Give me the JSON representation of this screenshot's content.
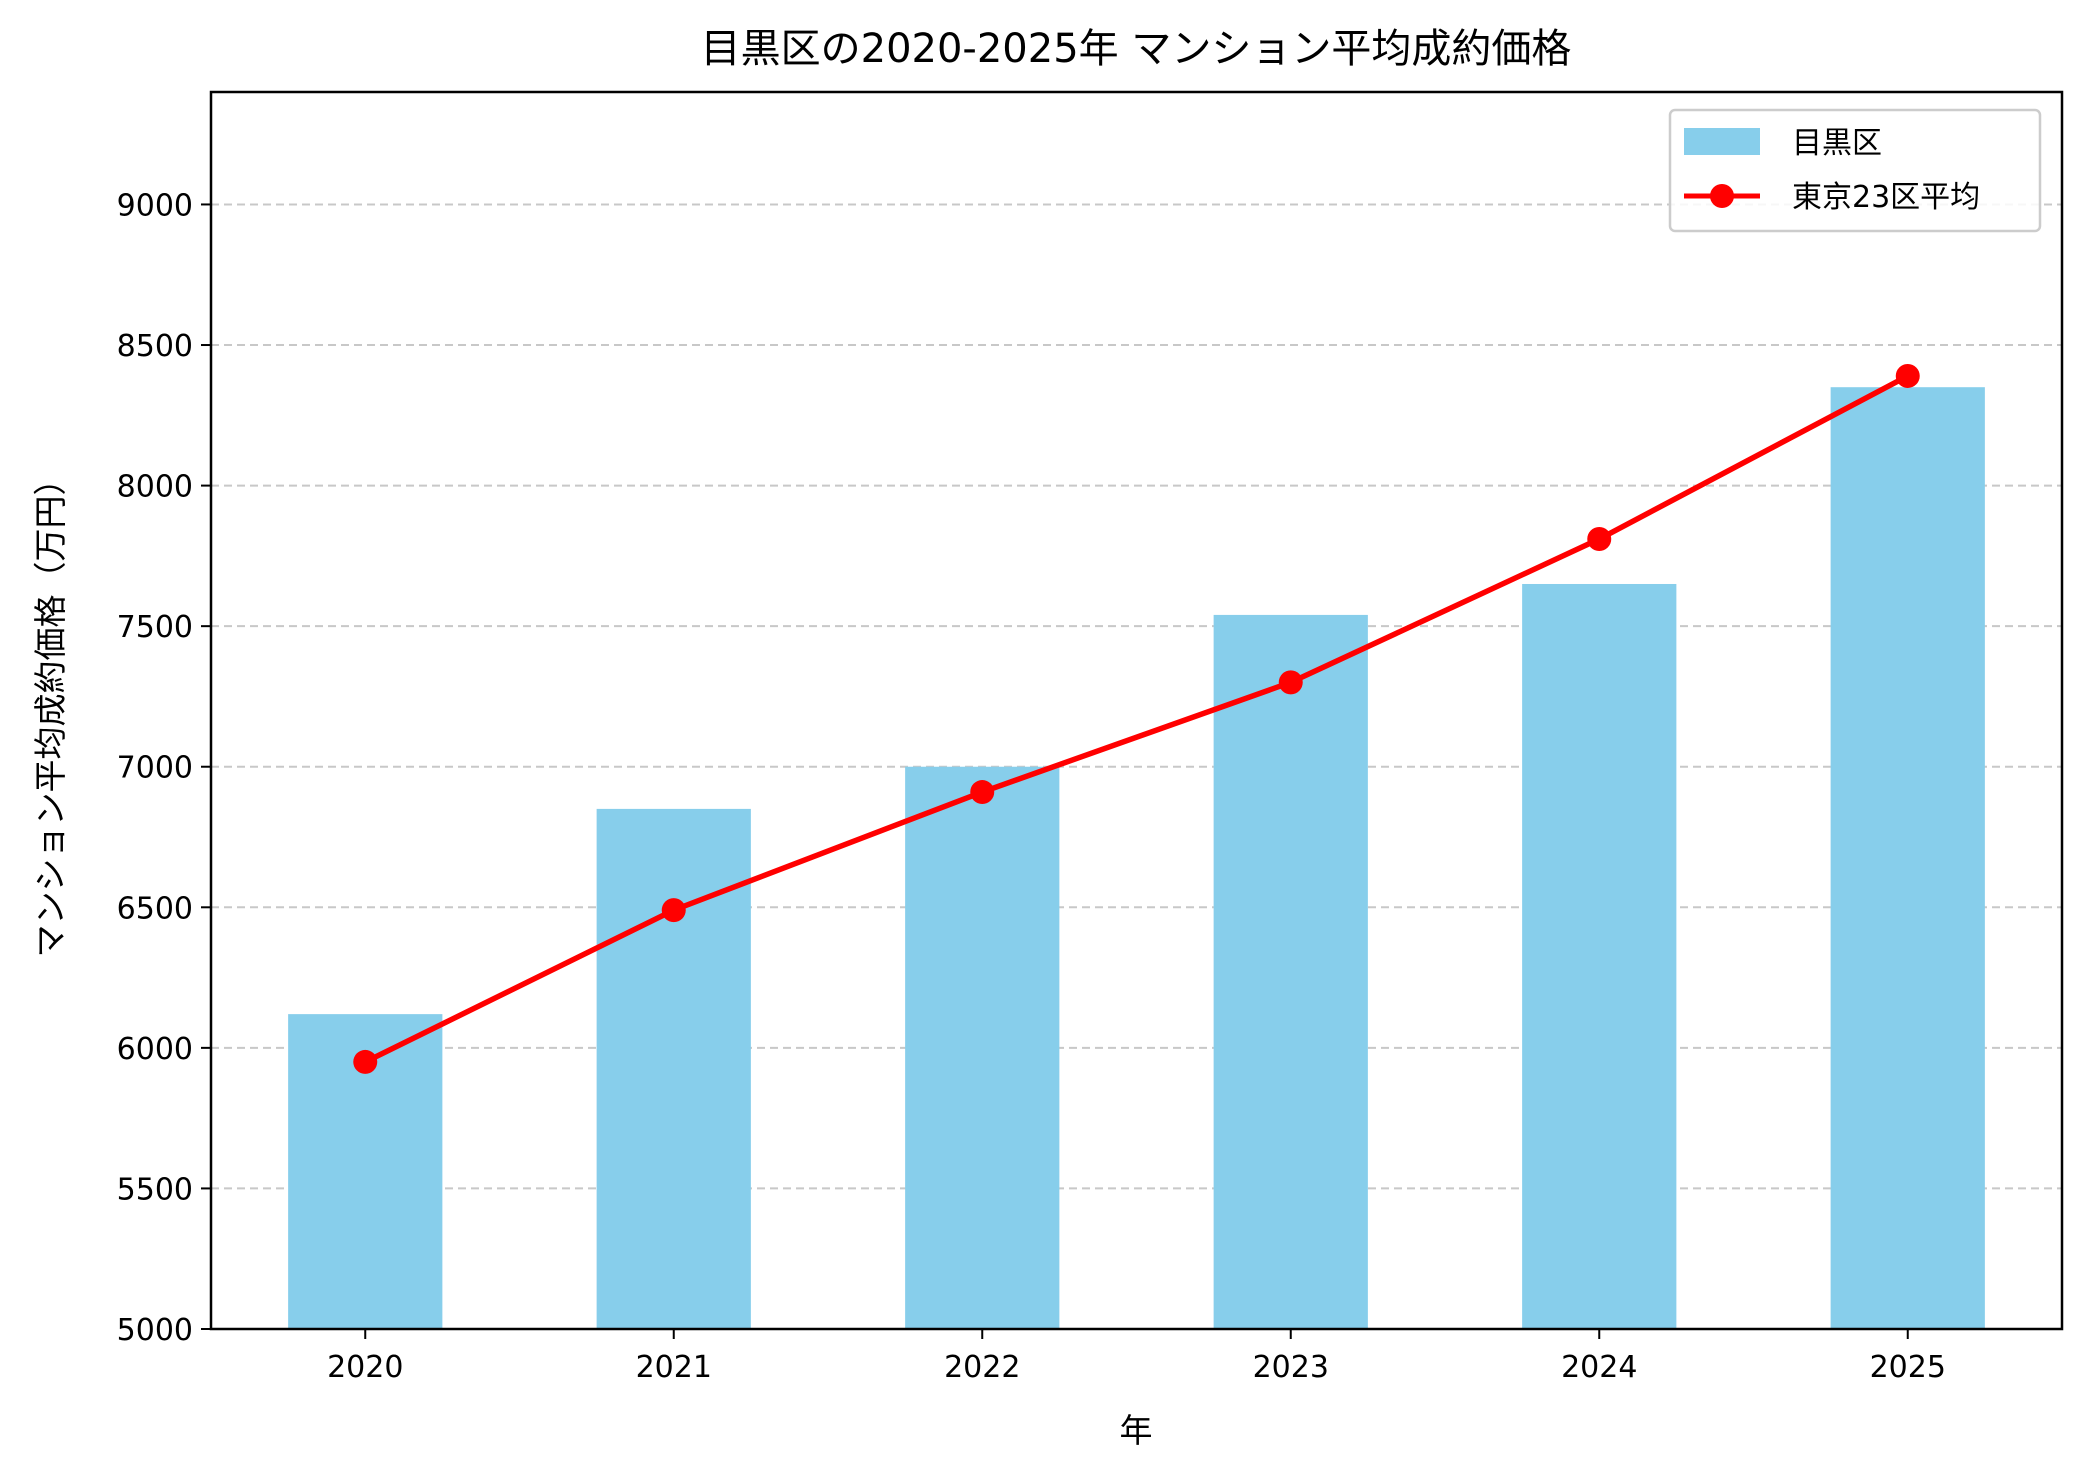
{
  "chart_data": {
    "type": "bar+line",
    "title": "目黒区の2020-2025年 マンション平均成約価格",
    "xlabel": "年",
    "ylabel": "マンション平均成約価格（万円）",
    "categories": [
      "2020",
      "2021",
      "2022",
      "2023",
      "2024",
      "2025"
    ],
    "ylim": [
      5000,
      9400
    ],
    "yticks": [
      5000,
      5500,
      6000,
      6500,
      7000,
      7500,
      8000,
      8500,
      9000
    ],
    "grid": "y-dashed",
    "legend_placement": "top-right",
    "series": [
      {
        "name": "目黒区",
        "kind": "bar",
        "color": "#87CEEB",
        "values": [
          6120,
          6850,
          7000,
          7540,
          7650,
          8350
        ]
      },
      {
        "name": "東京23区平均",
        "kind": "line",
        "marker": "circle",
        "color": "#FF0000",
        "values": [
          5950,
          6490,
          6910,
          7300,
          7810,
          8390
        ]
      }
    ]
  }
}
